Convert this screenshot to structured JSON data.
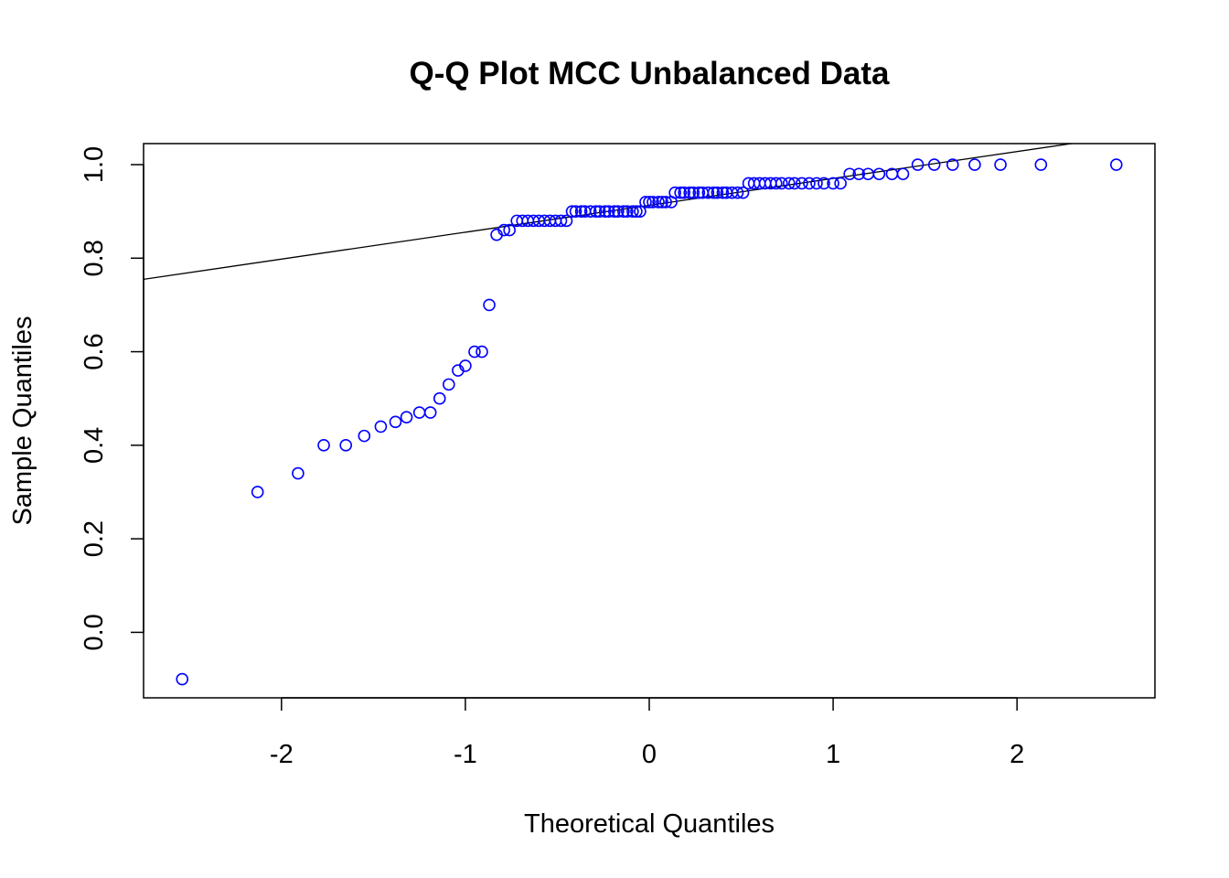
{
  "chart_data": {
    "type": "scatter",
    "title": "Q-Q Plot MCC Unbalanced Data",
    "xlabel": "Theoretical Quantiles",
    "ylabel": "Sample Quantiles",
    "xlim": [
      -2.75,
      2.75
    ],
    "ylim": [
      -0.14,
      1.045
    ],
    "x_ticks": [
      -2,
      -1,
      0,
      1,
      2
    ],
    "x_tick_labels": [
      "-2",
      "-1",
      "0",
      "1",
      "2"
    ],
    "y_ticks": [
      0.0,
      0.2,
      0.4,
      0.6,
      0.8,
      1.0
    ],
    "y_tick_labels": [
      "0.0",
      "0.2",
      "0.4",
      "0.6",
      "0.8",
      "1.0"
    ],
    "grid": false,
    "point_color": "#0000ff",
    "line_color": "#000000",
    "reference_line": {
      "intercept": 0.913,
      "slope": 0.0575
    },
    "series": [
      {
        "x": [
          -2.54,
          -2.13,
          -1.91,
          -1.77,
          -1.65,
          -1.55,
          -1.46,
          -1.38,
          -1.32,
          -1.25,
          -1.19,
          -1.14,
          -1.09,
          -1.04,
          -1.0,
          -0.95,
          -0.91,
          -0.87,
          -0.83,
          -0.79,
          -0.76,
          -0.72,
          -0.69,
          -0.66,
          -0.63,
          -0.6,
          -0.57,
          -0.54,
          -0.51,
          -0.48,
          -0.45,
          -0.42,
          -0.4,
          -0.37,
          -0.35,
          -0.32,
          -0.29,
          -0.27,
          -0.24,
          -0.22,
          -0.19,
          -0.17,
          -0.14,
          -0.12,
          -0.09,
          -0.07,
          -0.05,
          -0.02,
          0.0,
          0.02,
          0.05,
          0.07,
          0.09,
          0.12,
          0.14,
          0.17,
          0.19,
          0.22,
          0.24,
          0.27,
          0.29,
          0.32,
          0.35,
          0.37,
          0.4,
          0.42,
          0.45,
          0.48,
          0.51,
          0.54,
          0.57,
          0.6,
          0.63,
          0.66,
          0.69,
          0.72,
          0.76,
          0.79,
          0.83,
          0.87,
          0.91,
          0.95,
          1.0,
          1.04,
          1.09,
          1.14,
          1.19,
          1.25,
          1.32,
          1.38,
          1.46,
          1.55,
          1.65,
          1.77,
          1.91,
          2.13,
          2.54
        ],
        "y": [
          -0.1,
          0.3,
          0.34,
          0.4,
          0.4,
          0.42,
          0.44,
          0.45,
          0.46,
          0.47,
          0.47,
          0.5,
          0.53,
          0.56,
          0.57,
          0.6,
          0.6,
          0.7,
          0.85,
          0.86,
          0.86,
          0.88,
          0.88,
          0.88,
          0.88,
          0.88,
          0.88,
          0.88,
          0.88,
          0.88,
          0.88,
          0.9,
          0.9,
          0.9,
          0.9,
          0.9,
          0.9,
          0.9,
          0.9,
          0.9,
          0.9,
          0.9,
          0.9,
          0.9,
          0.9,
          0.9,
          0.9,
          0.92,
          0.92,
          0.92,
          0.92,
          0.92,
          0.92,
          0.92,
          0.94,
          0.94,
          0.94,
          0.94,
          0.94,
          0.94,
          0.94,
          0.94,
          0.94,
          0.94,
          0.94,
          0.94,
          0.94,
          0.94,
          0.94,
          0.96,
          0.96,
          0.96,
          0.96,
          0.96,
          0.96,
          0.96,
          0.96,
          0.96,
          0.96,
          0.96,
          0.96,
          0.96,
          0.96,
          0.96,
          0.98,
          0.98,
          0.98,
          0.98,
          0.98,
          0.98,
          1.0,
          1.0,
          1.0,
          1.0,
          1.0,
          1.0,
          1.0
        ]
      }
    ]
  }
}
